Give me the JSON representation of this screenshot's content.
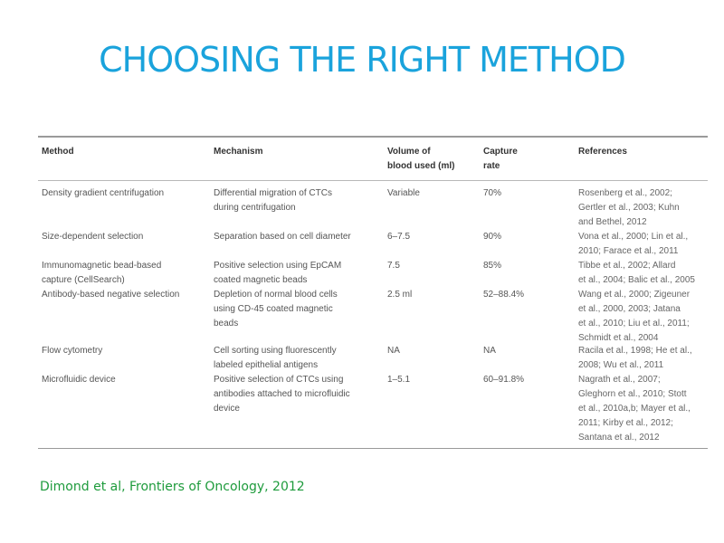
{
  "slide": {
    "title": "CHOOSING THE RIGHT METHOD",
    "source": "Dimond et al, Frontiers of Oncology, 2012"
  },
  "table": {
    "headers": {
      "method": "Method",
      "mechanism": "Mechanism",
      "volume": [
        "Volume of",
        "blood used (ml)"
      ],
      "capture": [
        "Capture",
        "rate"
      ],
      "references": "References"
    },
    "rows": [
      {
        "method": [
          "Density gradient centrifugation"
        ],
        "mechanism": [
          "Differential migration of CTCs",
          "during centrifugation"
        ],
        "volume": "Variable",
        "capture": "70%",
        "references": [
          "Rosenberg et al., 2002;",
          "Gertler et al., 2003; Kuhn",
          "and Bethel, 2012"
        ]
      },
      {
        "method": [
          "Size-dependent selection"
        ],
        "mechanism": [
          "Separation based on cell diameter"
        ],
        "volume": "6–7.5",
        "capture": "90%",
        "references": [
          "Vona et al., 2000; Lin et al.,",
          "2010; Farace et al., 2011"
        ]
      },
      {
        "method": [
          "Immunomagnetic bead-based",
          "capture (CellSearch)"
        ],
        "mechanism": [
          "Positive selection using EpCAM",
          "coated magnetic beads"
        ],
        "volume": "7.5",
        "capture": "85%",
        "references": [
          "Tibbe et al., 2002; Allard",
          "et al., 2004; Balic et al., 2005"
        ]
      },
      {
        "method": [
          "Antibody-based negative selection"
        ],
        "mechanism": [
          "Depletion of normal blood cells",
          "using CD-45 coated magnetic",
          "beads"
        ],
        "volume": "2.5 ml",
        "capture": "52–88.4%",
        "references": [
          "Wang et al., 2000; Zigeuner",
          "et al., 2000, 2003; Jatana",
          "et al., 2010; Liu et al., 2011;",
          "Schmidt et al., 2004"
        ]
      },
      {
        "method": [
          "Flow cytometry"
        ],
        "mechanism": [
          "Cell sorting using fluorescently",
          "labeled epithelial antigens"
        ],
        "volume": "NA",
        "capture": "NA",
        "references": [
          "Racila et al., 1998; He et al.,",
          "2008; Wu et al., 2011"
        ]
      },
      {
        "method": [
          "Microfluidic device"
        ],
        "mechanism": [
          "Positive selection of CTCs using",
          "antibodies attached to microfluidic",
          "device"
        ],
        "volume": "1–5.1",
        "capture": "60–91.8%",
        "references": [
          "Nagrath et al., 2007;",
          "Gleghorn et al., 2010; Stott",
          "et al., 2010a,b; Mayer et al.,",
          "2011; Kirby et al., 2012;",
          "Santana et al., 2012"
        ]
      }
    ]
  }
}
